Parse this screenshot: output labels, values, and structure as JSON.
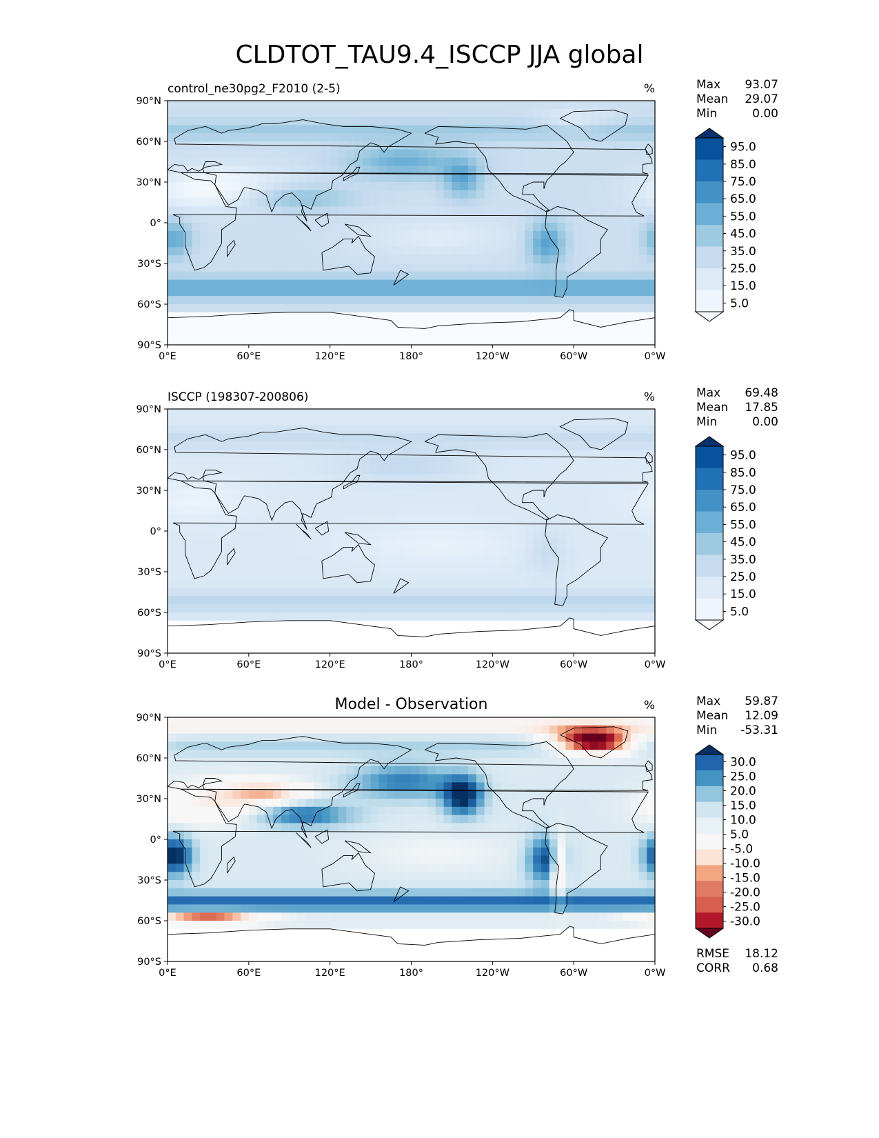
{
  "title": "CLDTOT_TAU9.4_ISCCP JJA global",
  "axes": {
    "lat_ticks": [
      "90°N",
      "60°N",
      "30°N",
      "0°",
      "30°S",
      "60°S",
      "90°S"
    ],
    "lon_ticks": [
      "0°E",
      "60°E",
      "120°E",
      "180°",
      "120°W",
      "60°W",
      "0°W"
    ]
  },
  "panels": [
    {
      "left_title": "control_ne30pg2_F2010 (2-5)",
      "center_title": "",
      "units": "%",
      "stats": [
        {
          "label": "Max",
          "value": "93.07"
        },
        {
          "label": "Mean",
          "value": "29.07"
        },
        {
          "label": "Min",
          "value": "0.00"
        }
      ],
      "colorbar_labels": [
        "95.0",
        "85.0",
        "75.0",
        "65.0",
        "55.0",
        "45.0",
        "35.0",
        "25.0",
        "15.0",
        "5.0"
      ],
      "colorbar_colors": [
        "#08306b",
        "#08519c",
        "#2171b5",
        "#4292c6",
        "#6baed6",
        "#9ecae1",
        "#c6dbef",
        "#deebf7",
        "#eef5fc",
        "#f7fbff"
      ],
      "extra_stats": [],
      "map_kind": "model"
    },
    {
      "left_title": "ISCCP (198307-200806)",
      "center_title": "",
      "units": "%",
      "stats": [
        {
          "label": "Max",
          "value": "69.48"
        },
        {
          "label": "Mean",
          "value": "17.85"
        },
        {
          "label": "Min",
          "value": "0.00"
        }
      ],
      "colorbar_labels": [
        "95.0",
        "85.0",
        "75.0",
        "65.0",
        "55.0",
        "45.0",
        "35.0",
        "25.0",
        "15.0",
        "5.0"
      ],
      "colorbar_colors": [
        "#08306b",
        "#08519c",
        "#2171b5",
        "#4292c6",
        "#6baed6",
        "#9ecae1",
        "#c6dbef",
        "#deebf7",
        "#eef5fc",
        "#f7fbff"
      ],
      "extra_stats": [],
      "map_kind": "obs"
    },
    {
      "left_title": "",
      "center_title": "Model - Observation",
      "units": "%",
      "stats": [
        {
          "label": "Max",
          "value": "59.87"
        },
        {
          "label": "Mean",
          "value": "12.09"
        },
        {
          "label": "Min",
          "value": "-53.31"
        }
      ],
      "colorbar_labels": [
        "30.0",
        "25.0",
        "20.0",
        "15.0",
        "10.0",
        "5.0",
        "-5.0",
        "-10.0",
        "-15.0",
        "-20.0",
        "-25.0",
        "-30.0"
      ],
      "colorbar_colors": [
        "#053061",
        "#2166ac",
        "#4393c3",
        "#92c5de",
        "#d1e5f0",
        "#e8f1f6",
        "#f7f7f7",
        "#fbe3d6",
        "#f4a582",
        "#e07b66",
        "#d6604d",
        "#b2182b",
        "#67001f"
      ],
      "extra_stats": [
        {
          "label": "RMSE",
          "value": "18.12"
        },
        {
          "label": "CORR",
          "value": "0.68"
        }
      ],
      "map_kind": "diff"
    }
  ]
}
